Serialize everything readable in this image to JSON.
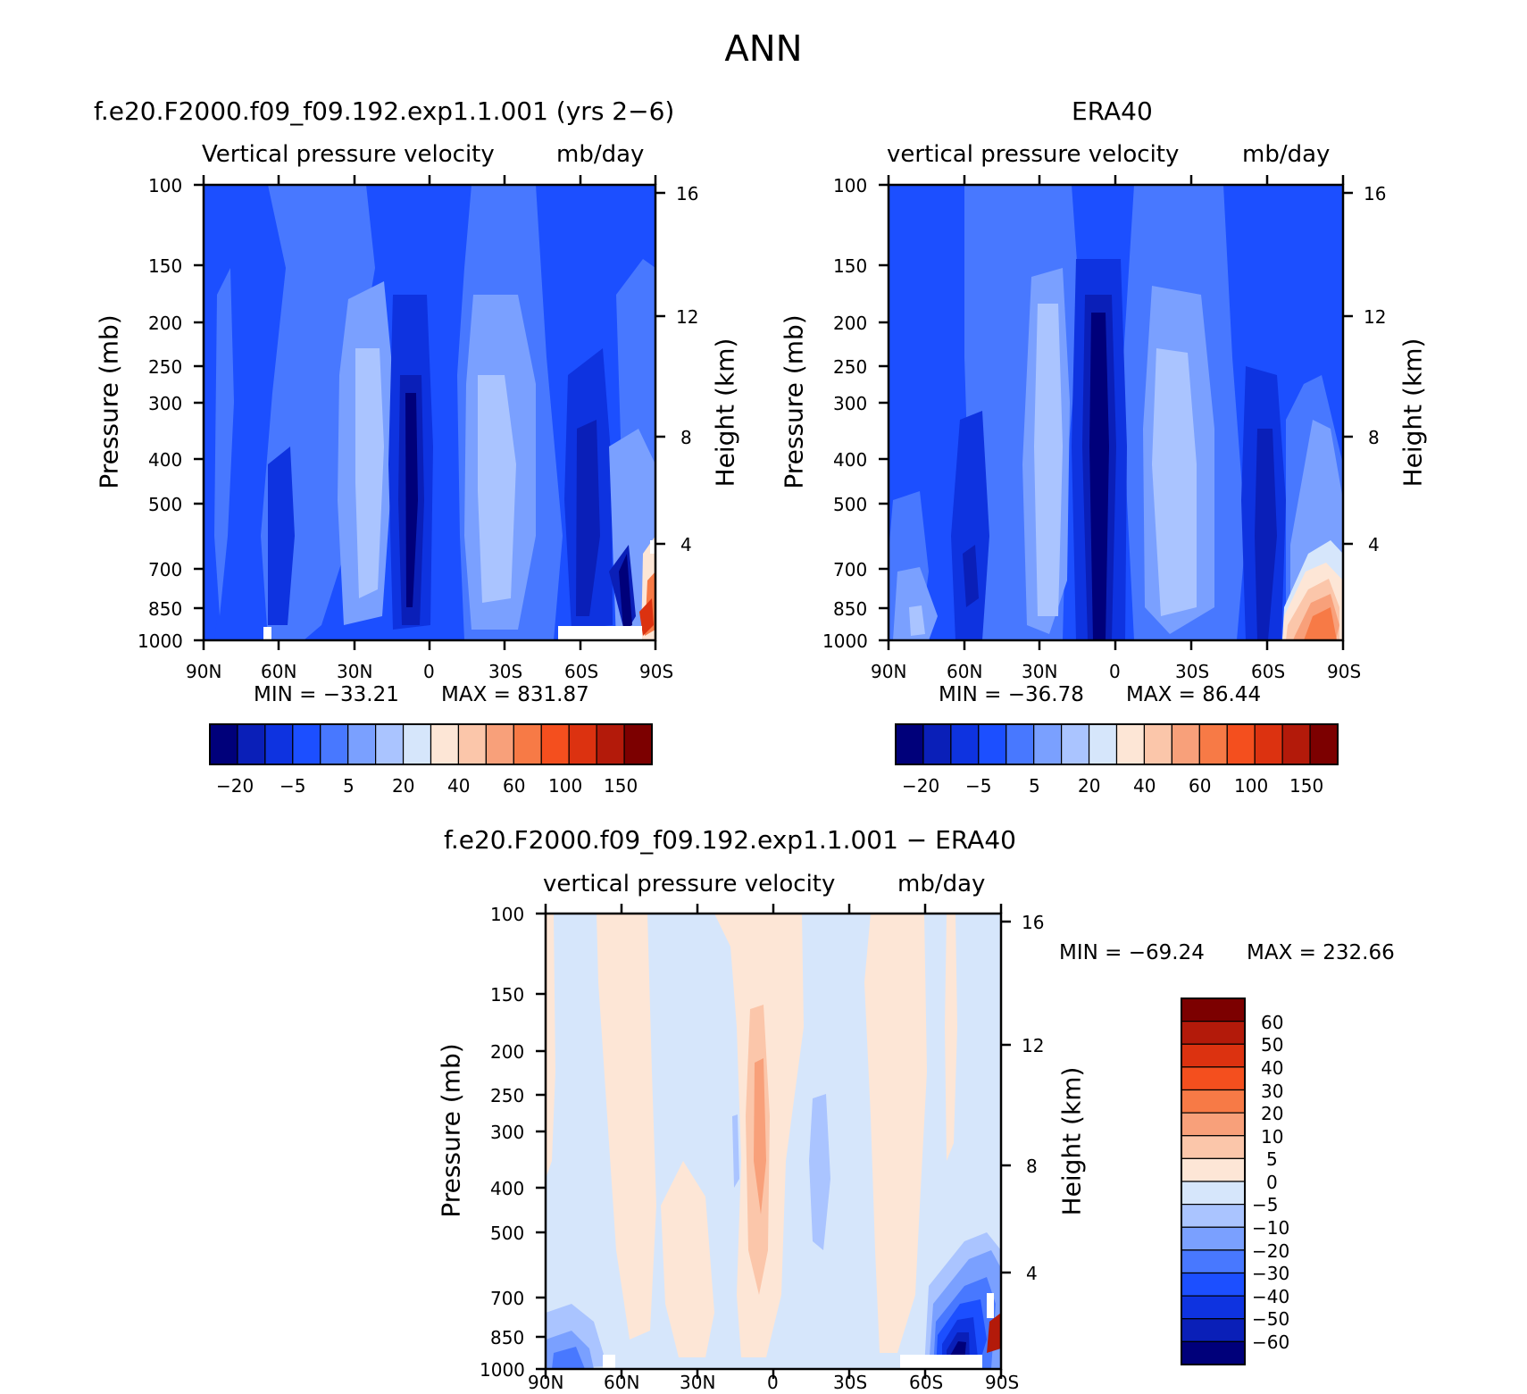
{
  "figure_title": "ANN",
  "chart_data": [
    {
      "type": "contour",
      "title": "f.e20.F2000.f09_f09.192.exp1.1.001 (yrs 2−6)",
      "subtitle_left": "Vertical pressure velocity",
      "subtitle_right": "mb/day",
      "ylabel": "Pressure (mb)",
      "ylabel_right": "Height (km)",
      "x_ticks": [
        "90N",
        "60N",
        "30N",
        "0",
        "30S",
        "60S",
        "90S"
      ],
      "y_ticks": [
        "100",
        "150",
        "200",
        "250",
        "300",
        "400",
        "500",
        "700",
        "850",
        "1000"
      ],
      "y_ticks_right": [
        "16",
        "12",
        "8",
        "4"
      ],
      "min_label": "MIN = −33.21",
      "max_label": "MAX = 831.87",
      "min": -33.21,
      "max": 831.87,
      "colorbar": {
        "orientation": "horizontal",
        "tick_labels": [
          "−20",
          "−5",
          "5",
          "20",
          "40",
          "60",
          "100",
          "150"
        ],
        "colors": [
          "#00007a",
          "#0a1fb8",
          "#0e33e0",
          "#1c4fff",
          "#4878ff",
          "#7aa0ff",
          "#aac4ff",
          "#d6e6fb",
          "#fde6d6",
          "#fbc6aa",
          "#f8a07a",
          "#f77a46",
          "#f44f1e",
          "#dc3210",
          "#b31a0a",
          "#7c0000"
        ]
      }
    },
    {
      "type": "contour",
      "title": "ERA40",
      "subtitle_left": "vertical pressure velocity",
      "subtitle_right": "mb/day",
      "ylabel": "Pressure (mb)",
      "ylabel_right": "Height (km)",
      "x_ticks": [
        "90N",
        "60N",
        "30N",
        "0",
        "30S",
        "60S",
        "90S"
      ],
      "y_ticks": [
        "100",
        "150",
        "200",
        "250",
        "300",
        "400",
        "500",
        "700",
        "850",
        "1000"
      ],
      "y_ticks_right": [
        "16",
        "12",
        "8",
        "4"
      ],
      "min_label": "MIN = −36.78",
      "max_label": "MAX =  86.44",
      "min": -36.78,
      "max": 86.44,
      "colorbar": {
        "orientation": "horizontal",
        "tick_labels": [
          "−20",
          "−5",
          "5",
          "20",
          "40",
          "60",
          "100",
          "150"
        ],
        "colors": [
          "#00007a",
          "#0a1fb8",
          "#0e33e0",
          "#1c4fff",
          "#4878ff",
          "#7aa0ff",
          "#aac4ff",
          "#d6e6fb",
          "#fde6d6",
          "#fbc6aa",
          "#f8a07a",
          "#f77a46",
          "#f44f1e",
          "#dc3210",
          "#b31a0a",
          "#7c0000"
        ]
      }
    },
    {
      "type": "contour",
      "title": "f.e20.F2000.f09_f09.192.exp1.1.001 − ERA40",
      "subtitle_left": "vertical pressure velocity",
      "subtitle_right": "mb/day",
      "ylabel": "Pressure (mb)",
      "ylabel_right": "Height (km)",
      "x_ticks": [
        "90N",
        "60N",
        "30N",
        "0",
        "30S",
        "60S",
        "90S"
      ],
      "y_ticks": [
        "100",
        "150",
        "200",
        "250",
        "300",
        "400",
        "500",
        "700",
        "850",
        "1000"
      ],
      "y_ticks_right": [
        "16",
        "12",
        "8",
        "4"
      ],
      "min_label": "MIN = −69.24",
      "max_label": "MAX = 232.66",
      "min": -69.24,
      "max": 232.66,
      "colorbar": {
        "orientation": "vertical",
        "tick_labels": [
          "60",
          "50",
          "40",
          "30",
          "20",
          "10",
          "5",
          "0",
          "−5",
          "−10",
          "−20",
          "−30",
          "−40",
          "−50",
          "−60"
        ],
        "colors": [
          "#7c0000",
          "#b31a0a",
          "#dc3210",
          "#f44f1e",
          "#f77a46",
          "#f8a07a",
          "#fbc6aa",
          "#fde6d6",
          "#d6e6fb",
          "#aac4ff",
          "#7aa0ff",
          "#4878ff",
          "#1c4fff",
          "#0e33e0",
          "#0a1fb8",
          "#00007a"
        ]
      }
    }
  ]
}
